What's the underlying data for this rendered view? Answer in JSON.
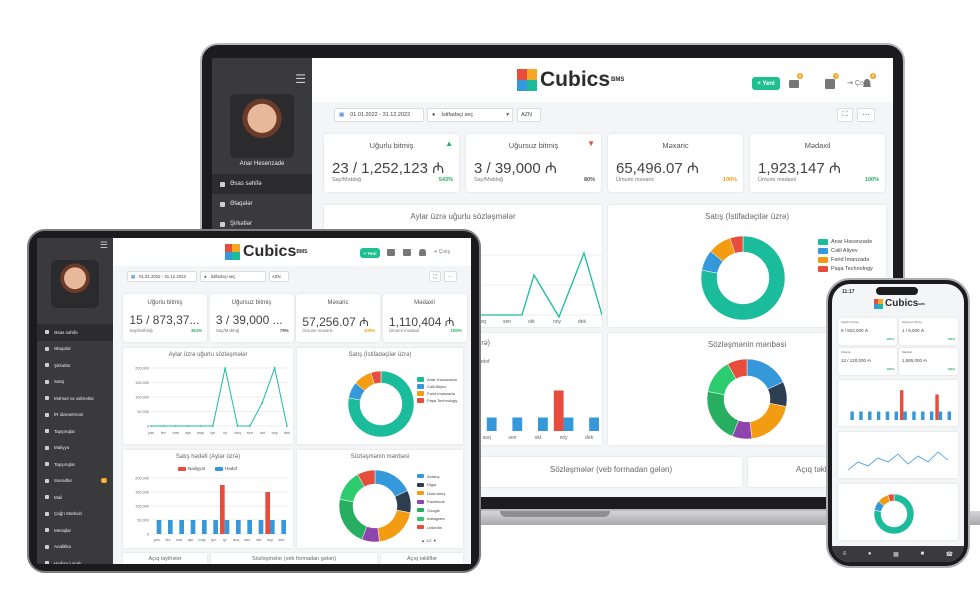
{
  "brand": {
    "name": "Cubics",
    "suffix": "BMS"
  },
  "user": {
    "name": "Anar Hesenzade"
  },
  "toolbar": {
    "new_label": "+ Yeni",
    "exit_label": "Çıxış",
    "date_range": "01.01.2022 - 31.12.2022",
    "user_select": "İstifadəçi seç",
    "currency": "AZN"
  },
  "badges": {
    "b1": "0",
    "b2": "0",
    "b3": "0"
  },
  "laptop": {
    "sidebar": [
      {
        "label": "Əsas səhifə",
        "icon": "home-icon"
      },
      {
        "label": "Əlaqələr",
        "icon": "contacts-icon"
      },
      {
        "label": "Şirkətlər",
        "icon": "building-icon"
      }
    ],
    "cards": [
      {
        "title": "Uğurlu bitmiş",
        "value": "23 / 1,252,123 ₼",
        "sub": "Say/Məbləğ",
        "pct": "543%",
        "icon": "thumbs-up-icon"
      },
      {
        "title": "Uğursuz bitmiş",
        "value": "3 / 39,000 ₼",
        "sub": "Say/Məbləğ",
        "pct": "80%",
        "icon": "thumbs-down-icon"
      },
      {
        "title": "Məxaric",
        "value": "65,496.07 ₼",
        "sub": "Ümumi məxaric",
        "pct": "100%"
      },
      {
        "title": "Mədaxil",
        "value": "1,923,147 ₼",
        "sub": "Ümumi mədaxil",
        "pct": "100%"
      }
    ],
    "panels": {
      "monthly": "Aylar üzrə uğurlu sözləşmələr",
      "sales": "Satış (İstifadəçilər üzrə)",
      "sources": "Sözləşmənin mənbəsi",
      "web": "Sözləşmələr (veb formadan gələn)",
      "open": "Açıq təklif",
      "plan_fragment": "üzrə)",
      "target_fragment": "Hədəf"
    },
    "x_labels": [
      "avq",
      "sen",
      "okt",
      "noy",
      "dek"
    ]
  },
  "tablet": {
    "sidebar": [
      {
        "label": "Əsas səhifə",
        "icon": "home-icon"
      },
      {
        "label": "Əlaqələr",
        "icon": "contacts-icon"
      },
      {
        "label": "Şirkətlər",
        "icon": "building-icon"
      },
      {
        "label": "Satış",
        "icon": "cart-icon"
      },
      {
        "label": "Məhsul və xidmətlər",
        "icon": "box-icon"
      },
      {
        "label": "İR idarəetməsi",
        "icon": "users-icon"
      },
      {
        "label": "Tapşırıqlar",
        "icon": "task-icon"
      },
      {
        "label": "Maliyyə",
        "icon": "finance-icon"
      },
      {
        "label": "Tapşırıqlar",
        "icon": "check-icon"
      },
      {
        "label": "Sənədlər",
        "icon": "doc-icon",
        "badge": "1"
      },
      {
        "label": "Mail",
        "icon": "mail-icon"
      },
      {
        "label": "Çağrı Mərkəzi",
        "icon": "phone-icon"
      },
      {
        "label": "Mesajlar",
        "icon": "chat-icon"
      },
      {
        "label": "Analitika",
        "icon": "chart-icon"
      },
      {
        "label": "Hadisə jurnalı",
        "icon": "log-icon"
      }
    ],
    "cards": [
      {
        "title": "Uğurlu bitmiş",
        "value": "15 / 873,37...",
        "sub": "Say/Məbləğ",
        "pct": "361%"
      },
      {
        "title": "Uğursuz bitmiş",
        "value": "3 / 39,000 ...",
        "sub": "Say/Məbləğ",
        "pct": "79%"
      },
      {
        "title": "Məxaric",
        "value": "57,256.07 ₼",
        "sub": "Ümumi məxaric",
        "pct": "100%"
      },
      {
        "title": "Mədaxil",
        "value": "1,110,404 ₼",
        "sub": "Ümumi mədaxil",
        "pct": "100%"
      }
    ],
    "panels": {
      "monthly": "Aylar üzrə uğurlu sözləşmələr",
      "sales": "Satış (İstifadəçilər üzrə)",
      "plan": "Satış hədəfi (Aylar üzrə)",
      "sources": "Sözləşmənin mənbəsi",
      "open_layout": "Açıq layihələr",
      "web": "Sözləşmələr (veb formadan gələn)",
      "open": "Açıq təkliflər"
    },
    "months": [
      "yan",
      "fev",
      "mar",
      "apr",
      "may",
      "iyn",
      "iyl",
      "avq",
      "sen",
      "okt",
      "noy",
      "dek"
    ],
    "y_ticks": [
      "200,000",
      "150,000",
      "100,000",
      "50,000",
      "0"
    ],
    "plan_legend": {
      "actual": "Nailiyyət",
      "target": "Hədəf"
    },
    "pager": "1/2"
  },
  "sales_legend": [
    {
      "name": "Anar Həsənzadə",
      "color": "#1abc9c"
    },
    {
      "name": "Cəlil Aliyev",
      "color": "#3498db"
    },
    {
      "name": "Fərid İmanzadə",
      "color": "#f39c12"
    },
    {
      "name": "Paşa Technology",
      "color": "#e74c3c"
    }
  ],
  "source_legend": [
    {
      "name": "Axtarış",
      "color": "#3498db"
    },
    {
      "name": "Digər",
      "color": "#2c3e50"
    },
    {
      "name": "Dost-tanış",
      "color": "#f39c12"
    },
    {
      "name": "Facebook",
      "color": "#8e44ad"
    },
    {
      "name": "Google",
      "color": "#27ae60"
    },
    {
      "name": "Instagram",
      "color": "#2ecc71"
    },
    {
      "name": "LinkedIn",
      "color": "#e74c3c"
    }
  ],
  "phone": {
    "time": "11:17",
    "cards": [
      {
        "title": "Uğurlu bitmiş",
        "value": "9 / 822,000 ₼",
        "pct": "100%"
      },
      {
        "title": "Uğursuz bitmiş",
        "value": "1 / 6,000 ₼",
        "pct": "100%"
      },
      {
        "title": "Ödəniş",
        "value": "12 / 120,000 ₼",
        "pct": "100%"
      },
      {
        "title": "Mədaxil",
        "value": "1,555,000 ₼",
        "pct": "100%"
      }
    ]
  },
  "chart_data": [
    {
      "type": "line",
      "title": "Aylar üzrə uğurlu sözləşmələr",
      "x": [
        "yan",
        "fev",
        "mar",
        "apr",
        "may",
        "iyn",
        "iyl",
        "avq",
        "sen",
        "okt",
        "noy",
        "dek"
      ],
      "values": [
        0,
        0,
        0,
        0,
        0,
        0,
        200000,
        0,
        0,
        80000,
        200000,
        0
      ],
      "ylim": [
        0,
        200000
      ]
    },
    {
      "type": "pie",
      "title": "Satış (İstifadəçilər üzrə)",
      "categories": [
        "Anar Həsənzadə",
        "Cəlil Aliyev",
        "Fərid İmanzadə",
        "Paşa Technology"
      ],
      "values": [
        78,
        8,
        9,
        5
      ]
    },
    {
      "type": "bar",
      "title": "Satış hədəfi (Aylar üzrə)",
      "categories": [
        "yan",
        "fev",
        "mar",
        "apr",
        "may",
        "iyn",
        "iyl",
        "avq",
        "sen",
        "okt",
        "noy",
        "dek"
      ],
      "series": [
        {
          "name": "Nailiyyət",
          "values": [
            0,
            0,
            0,
            0,
            0,
            0,
            175000,
            0,
            0,
            0,
            150000,
            0
          ]
        },
        {
          "name": "Hədəf",
          "values": [
            50000,
            50000,
            50000,
            50000,
            50000,
            50000,
            50000,
            50000,
            50000,
            50000,
            50000,
            50000
          ]
        }
      ],
      "ylim": [
        0,
        200000
      ]
    },
    {
      "type": "pie",
      "title": "Sözləşmənin mənbəsi",
      "categories": [
        "Axtarış",
        "Digər",
        "Dost-tanış",
        "Facebook",
        "Google",
        "Instagram",
        "LinkedIn"
      ],
      "values": [
        18,
        10,
        20,
        8,
        22,
        14,
        8
      ]
    }
  ]
}
